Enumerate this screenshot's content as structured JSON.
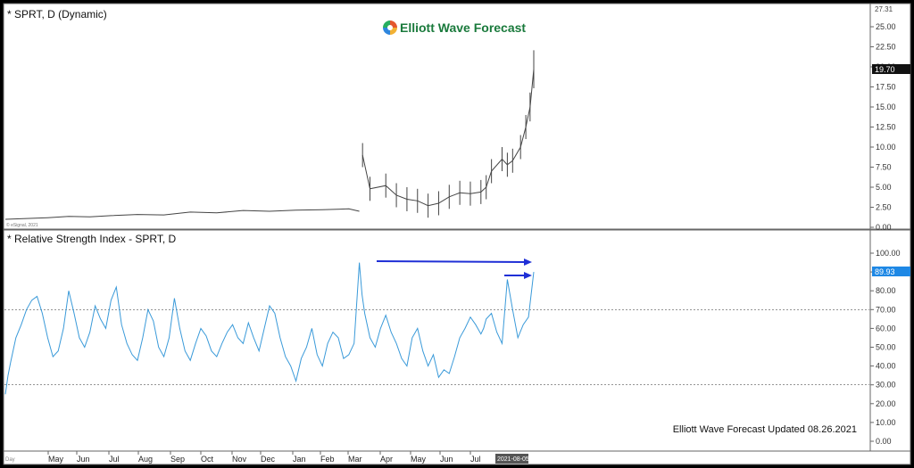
{
  "brand": {
    "name": "Elliott Wave Forecast",
    "logo_colors": [
      "#e4572e",
      "#f2b134",
      "#2e86de",
      "#27ae60"
    ],
    "text_color": "#1a7a3c"
  },
  "price_panel": {
    "title": "* SPRT, D (Dynamic)",
    "last_value": "19.70",
    "top_clipped_value": "27.31",
    "copyright": "© eSignal, 2021",
    "yticks": [
      "25.00",
      "22.50",
      "20.00",
      "17.50",
      "15.00",
      "12.50",
      "10.00",
      "7.50",
      "5.00",
      "2.50",
      "0.00"
    ]
  },
  "rsi_panel": {
    "title": "* Relative Strength Index - SPRT, D",
    "last_value": "89.93",
    "yticks": [
      "100.00",
      "90.00",
      "80.00",
      "70.00",
      "60.00",
      "50.00",
      "40.00",
      "30.00",
      "20.00",
      "10.00",
      "0.00"
    ],
    "note": "Elliott Wave Forecast Updated 08.26.2021"
  },
  "x_axis": {
    "months": [
      "May",
      "Jun",
      "Jul",
      "Aug",
      "Sep",
      "Oct",
      "Nov",
      "Dec",
      "Jan",
      "Feb",
      "Mar",
      "Apr",
      "May",
      "Jun",
      "Jul"
    ],
    "cursor_date": "2021-08-05",
    "corner_label": "Day"
  },
  "colors": {
    "price_line": "#444444",
    "rsi_line": "#3a9ad9",
    "arrow": "#1f2fd6",
    "last_price_bg": "#111111",
    "last_rsi_bg": "#1e88e5",
    "guide_line": "#555555"
  },
  "chart_data": [
    {
      "type": "line",
      "title": "SPRT, D (Dynamic)",
      "ylim": [
        0,
        27.31
      ],
      "x_months": [
        "May",
        "Jun",
        "Jul",
        "Aug",
        "Sep",
        "Oct",
        "Nov",
        "Dec",
        "Jan",
        "Feb",
        "Mar",
        "Apr",
        "May",
        "Jun",
        "Jul"
      ],
      "x": [
        0,
        0.04,
        0.08,
        0.12,
        0.16,
        0.2,
        0.25,
        0.3,
        0.35,
        0.4,
        0.45,
        0.5,
        0.55,
        0.6,
        0.65,
        0.67,
        0.676,
        0.69,
        0.72,
        0.74,
        0.76,
        0.78,
        0.8,
        0.82,
        0.84,
        0.86,
        0.88,
        0.9,
        0.91,
        0.92,
        0.94,
        0.95,
        0.96,
        0.975,
        0.985,
        0.993,
        1.0
      ],
      "values": [
        1.0,
        1.1,
        1.2,
        1.35,
        1.3,
        1.45,
        1.6,
        1.55,
        1.9,
        1.8,
        2.1,
        2.0,
        2.15,
        2.2,
        2.3,
        2.0,
        9.0,
        4.8,
        5.2,
        4.0,
        3.5,
        3.3,
        2.7,
        3.0,
        3.8,
        4.3,
        4.2,
        4.4,
        5.0,
        7.0,
        8.5,
        7.8,
        8.3,
        10.0,
        12.5,
        15.0,
        19.7
      ]
    },
    {
      "type": "line",
      "title": "Relative Strength Index - SPRT, D",
      "ylim": [
        0,
        100
      ],
      "reference_lines": [
        70,
        30
      ],
      "x": [
        0,
        0.005,
        0.01,
        0.02,
        0.03,
        0.04,
        0.05,
        0.06,
        0.07,
        0.08,
        0.09,
        0.1,
        0.11,
        0.12,
        0.13,
        0.14,
        0.15,
        0.16,
        0.17,
        0.18,
        0.19,
        0.2,
        0.21,
        0.22,
        0.23,
        0.24,
        0.25,
        0.26,
        0.27,
        0.28,
        0.29,
        0.3,
        0.31,
        0.32,
        0.33,
        0.34,
        0.35,
        0.36,
        0.37,
        0.38,
        0.39,
        0.4,
        0.41,
        0.42,
        0.43,
        0.44,
        0.45,
        0.46,
        0.47,
        0.48,
        0.49,
        0.5,
        0.51,
        0.52,
        0.53,
        0.54,
        0.55,
        0.56,
        0.57,
        0.58,
        0.59,
        0.6,
        0.61,
        0.62,
        0.63,
        0.64,
        0.65,
        0.66,
        0.67,
        0.675,
        0.68,
        0.69,
        0.7,
        0.71,
        0.72,
        0.73,
        0.74,
        0.75,
        0.76,
        0.77,
        0.78,
        0.79,
        0.8,
        0.81,
        0.82,
        0.83,
        0.84,
        0.85,
        0.86,
        0.87,
        0.88,
        0.89,
        0.9,
        0.905,
        0.91,
        0.92,
        0.93,
        0.94,
        0.95,
        0.96,
        0.97,
        0.98,
        0.99,
        1.0
      ],
      "values": [
        25,
        35,
        42,
        55,
        62,
        70,
        75,
        77,
        68,
        55,
        45,
        48,
        60,
        80,
        68,
        55,
        50,
        58,
        72,
        65,
        60,
        75,
        82,
        62,
        52,
        46,
        43,
        55,
        70,
        64,
        50,
        45,
        55,
        76,
        60,
        48,
        43,
        52,
        60,
        56,
        48,
        45,
        52,
        58,
        62,
        55,
        52,
        63,
        55,
        48,
        60,
        72,
        68,
        55,
        45,
        40,
        32,
        44,
        50,
        60,
        46,
        40,
        52,
        58,
        55,
        44,
        46,
        52,
        95,
        78,
        68,
        55,
        50,
        60,
        67,
        58,
        52,
        44,
        40,
        55,
        60,
        48,
        40,
        46,
        34,
        38,
        36,
        45,
        55,
        60,
        66,
        62,
        57,
        60,
        65,
        68,
        58,
        52,
        86,
        70,
        55,
        62,
        66,
        90
      ]
    }
  ]
}
